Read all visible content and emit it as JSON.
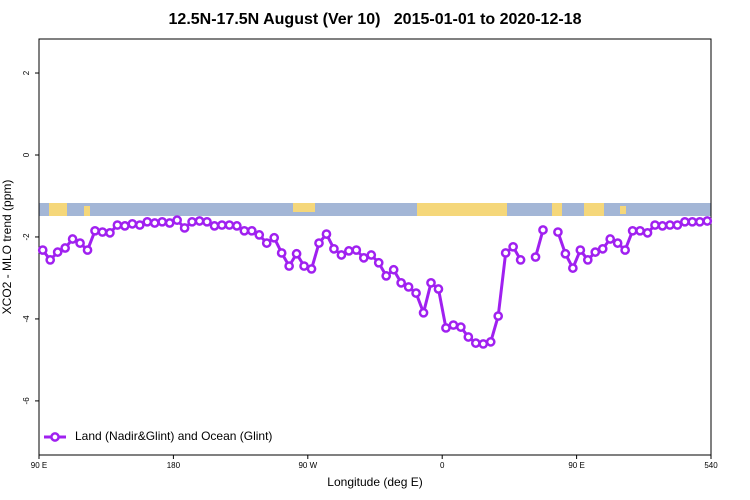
{
  "chart_data": {
    "type": "line",
    "title": "12.5N-17.5N August (Ver 10)   2015-01-01 to 2020-12-18",
    "xlabel": "Longitude (deg E)",
    "ylabel": "XCO2 - MLO trend (ppm)",
    "x": [
      92.5,
      97.5,
      102.5,
      107.5,
      112.5,
      117.5,
      122.5,
      127.5,
      132.5,
      137.5,
      142.5,
      147.5,
      152.5,
      157.5,
      162.5,
      167.5,
      172.5,
      177.5,
      182.5,
      187.5,
      192.5,
      197.5,
      202.5,
      207.5,
      212.5,
      217.5,
      222.5,
      227.5,
      232.5,
      237.5,
      242.5,
      247.5,
      252.5,
      257.5,
      262.5,
      267.5,
      272.5,
      277.5,
      282.5,
      287.5,
      292.5,
      297.5,
      302.5,
      307.5,
      312.5,
      317.5,
      322.5,
      327.5,
      332.5,
      337.5,
      342.5,
      347.5,
      352.5,
      357.5,
      362.5,
      367.5,
      372.5,
      377.5,
      382.5,
      387.5,
      392.5,
      397.5,
      402.5,
      407.5,
      412.5,
      417.5,
      422.5,
      427.5,
      432.5,
      437.5,
      442.5,
      447.5,
      452.5,
      457.5,
      462.5,
      467.5,
      472.5,
      477.5,
      482.5,
      487.5,
      492.5,
      497.5,
      502.5,
      507.5,
      512.5,
      517.5,
      522.5,
      527.5,
      532.5,
      537.5
    ],
    "series": [
      {
        "name": "Land (Nadir&Glint) and Ocean (Glint)",
        "color": "#a020f0",
        "values": [
          -2.32,
          -2.56,
          -2.37,
          -2.27,
          -2.05,
          -2.15,
          -2.32,
          -1.85,
          -1.88,
          -1.9,
          -1.71,
          -1.73,
          -1.68,
          -1.71,
          -1.63,
          -1.66,
          -1.63,
          -1.66,
          -1.59,
          -1.78,
          -1.63,
          -1.61,
          -1.63,
          -1.73,
          -1.71,
          -1.71,
          -1.73,
          -1.85,
          -1.85,
          -1.95,
          -2.15,
          -2.02,
          -2.39,
          -2.71,
          -2.41,
          -2.71,
          -2.78,
          -2.15,
          -1.93,
          -2.29,
          -2.44,
          -2.34,
          -2.32,
          -2.51,
          -2.44,
          -2.63,
          -2.95,
          -2.8,
          -3.12,
          -3.22,
          -3.37,
          -3.85,
          -3.12,
          -3.27,
          -4.22,
          -4.15,
          -4.2,
          -4.44,
          -4.59,
          -4.61,
          -4.56,
          -3.93,
          -2.39,
          -2.24,
          -2.56,
          null,
          -2.49,
          -1.83,
          null,
          -1.88,
          -2.41,
          -2.76,
          -2.32,
          -2.56,
          -2.37,
          -2.29,
          -2.05,
          -2.15,
          -2.32,
          -1.85,
          -1.85,
          -1.9,
          -1.71,
          -1.73,
          -1.71,
          -1.71,
          -1.63,
          -1.63,
          -1.63,
          -1.61
        ]
      }
    ],
    "xlim": [
      90,
      540
    ],
    "xticks": [
      {
        "value": 90,
        "label": "90 E"
      },
      180,
      {
        "value": 270,
        "label": "90 W"
      },
      {
        "value": 360,
        "label": "0"
      },
      {
        "value": 450,
        "label": "90 E"
      },
      540
    ],
    "ylim": [
      -7.32,
      2.83
    ],
    "yticks": [
      2,
      0,
      -2,
      -4,
      -6
    ]
  }
}
